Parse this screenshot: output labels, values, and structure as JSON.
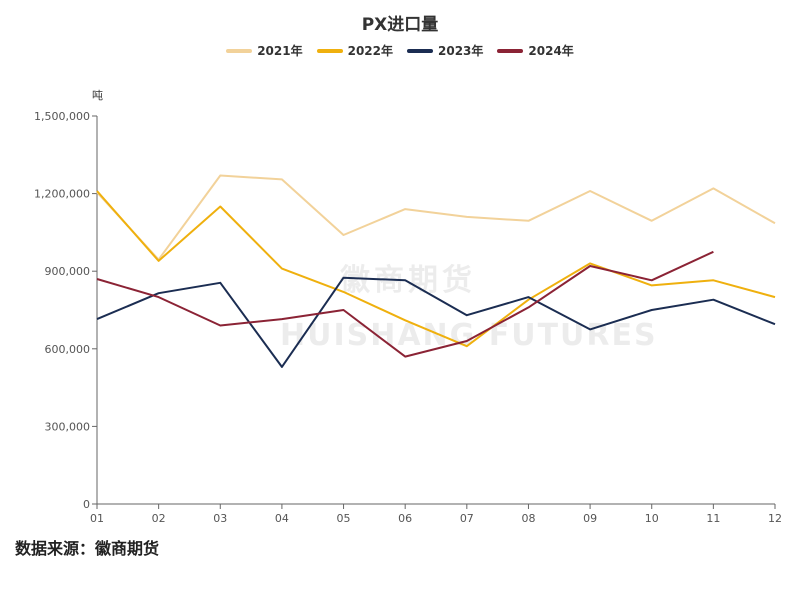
{
  "chart_data": {
    "type": "line",
    "title": "PX进口量",
    "ylabel": "吨",
    "xlabel": "",
    "categories": [
      "01",
      "02",
      "03",
      "04",
      "05",
      "06",
      "07",
      "08",
      "09",
      "10",
      "11",
      "12"
    ],
    "ylim": [
      0,
      1500000
    ],
    "yticks": [
      0,
      300000,
      600000,
      900000,
      1200000,
      1500000
    ],
    "ytick_labels": [
      "0",
      "300,000",
      "600,000",
      "900,000",
      "1,200,000",
      "1,500,000"
    ],
    "legend_position": "top-center",
    "grid": false,
    "series": [
      {
        "name": "2021年",
        "color": "#F2D29A",
        "values": [
          1205000,
          945000,
          1270000,
          1255000,
          1040000,
          1140000,
          1110000,
          1095000,
          1210000,
          1095000,
          1220000,
          1085000
        ]
      },
      {
        "name": "2022年",
        "color": "#EFB00E",
        "values": [
          1210000,
          940000,
          1150000,
          910000,
          820000,
          710000,
          610000,
          790000,
          930000,
          845000,
          865000,
          800000
        ]
      },
      {
        "name": "2023年",
        "color": "#1B2D52",
        "values": [
          715000,
          815000,
          855000,
          530000,
          875000,
          865000,
          730000,
          800000,
          675000,
          750000,
          790000,
          695000
        ]
      },
      {
        "name": "2024年",
        "color": "#8B2335",
        "values": [
          870000,
          800000,
          690000,
          715000,
          750000,
          570000,
          630000,
          760000,
          920000,
          865000,
          975000,
          null
        ]
      }
    ]
  },
  "watermark": {
    "cn": "徽商期货",
    "en": "HUISHANG FUTURES"
  },
  "source_note": "数据来源：徽商期货"
}
